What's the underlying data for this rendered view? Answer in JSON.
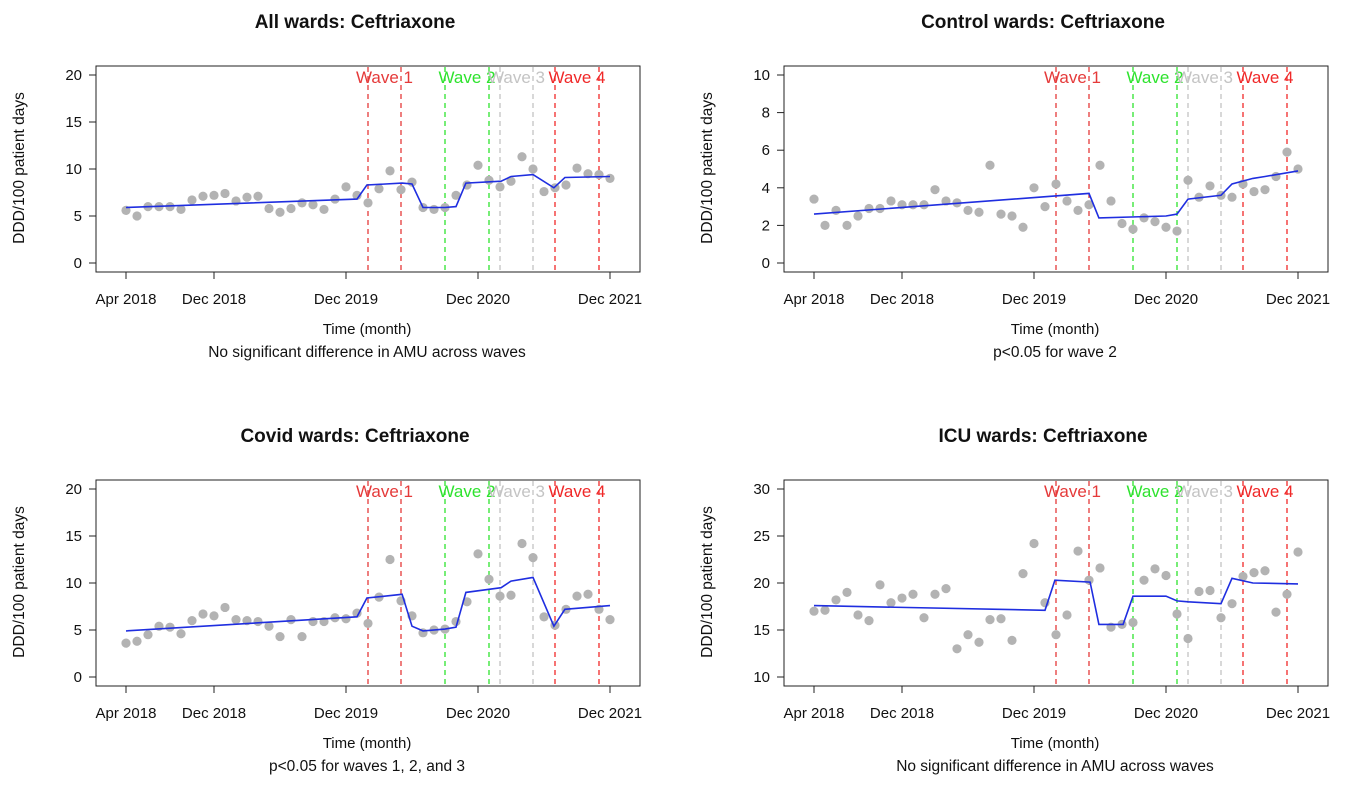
{
  "chart_data": [
    {
      "type": "scatter",
      "title": "All wards: Ceftriaxone",
      "xlabel": "Time (month)",
      "ylabel": "DDD/100 patient days",
      "caption": "No significant difference in AMU across waves",
      "x_tick_labels": [
        "Apr 2018",
        "Dec 2018",
        "Dec 2019",
        "Dec 2020",
        "Dec 2021"
      ],
      "x_tick_months": [
        1,
        9,
        21,
        33,
        45
      ],
      "y_ticks": [
        0,
        5,
        10,
        15,
        20
      ],
      "ylim": [
        0,
        20
      ],
      "grid": false,
      "observed": {
        "x": [
          1,
          2,
          3,
          4,
          5,
          6,
          7,
          8,
          9,
          10,
          11,
          12,
          13,
          14,
          15,
          16,
          17,
          18,
          19,
          20,
          21,
          22,
          23,
          24,
          25,
          26,
          27,
          28,
          29,
          30,
          31,
          32,
          33,
          34,
          35,
          36,
          37,
          38,
          39,
          40,
          41,
          42,
          43,
          44,
          45
        ],
        "y": [
          5.6,
          5.0,
          6.0,
          6.0,
          6.0,
          5.7,
          6.7,
          7.1,
          7.2,
          7.4,
          6.6,
          7.0,
          7.1,
          5.8,
          5.4,
          5.8,
          6.4,
          6.2,
          5.7,
          6.8,
          8.1,
          7.2,
          6.4,
          7.9,
          9.8,
          7.8,
          8.6,
          5.9,
          5.7,
          5.9,
          7.2,
          8.3,
          10.4,
          8.8,
          8.1,
          8.7,
          11.3,
          10.0,
          7.6,
          8.0,
          8.3,
          10.1,
          9.5,
          9.4,
          9.0
        ]
      },
      "fitted": {
        "x": [
          1,
          22,
          22.9,
          26.1,
          27,
          28,
          30,
          31,
          31.9,
          35.1,
          36,
          38,
          39.9,
          40.9,
          45
        ],
        "y": [
          5.9,
          6.8,
          8.3,
          8.5,
          8.4,
          5.9,
          5.9,
          6.0,
          8.5,
          8.7,
          9.2,
          9.4,
          8.0,
          9.1,
          9.2
        ]
      },
      "waves": [
        {
          "label": "Wave 1",
          "color": "#e53a3a",
          "start": 23,
          "end": 26
        },
        {
          "label": "Wave 2",
          "color": "#2ee32e",
          "start": 30,
          "end": 34
        },
        {
          "label": "Wave 3",
          "color": "#c4c4c4",
          "start": 35,
          "end": 38
        },
        {
          "label": "Wave 4",
          "color": "#f02828",
          "start": 40,
          "end": 44
        }
      ],
      "point_color": "#b3b3b3",
      "line_color": "#1f2ee0"
    },
    {
      "type": "scatter",
      "title": "Control wards: Ceftriaxone",
      "xlabel": "Time (month)",
      "ylabel": "DDD/100 patient days",
      "caption": "p<0.05 for wave 2",
      "x_tick_labels": [
        "Apr 2018",
        "Dec 2018",
        "Dec 2019",
        "Dec 2020",
        "Dec 2021"
      ],
      "x_tick_months": [
        1,
        9,
        21,
        33,
        45
      ],
      "y_ticks": [
        0,
        2,
        4,
        6,
        8,
        10
      ],
      "ylim": [
        0,
        10
      ],
      "grid": false,
      "observed": {
        "x": [
          1,
          2,
          3,
          4,
          5,
          6,
          7,
          8,
          9,
          10,
          11,
          12,
          13,
          14,
          15,
          16,
          17,
          18,
          19,
          20,
          21,
          22,
          23,
          24,
          25,
          26,
          27,
          28,
          29,
          30,
          31,
          32,
          33,
          34,
          35,
          36,
          37,
          38,
          39,
          40,
          41,
          42,
          43,
          44,
          45
        ],
        "y": [
          3.4,
          2.0,
          2.8,
          2.0,
          2.5,
          2.9,
          2.9,
          3.3,
          3.1,
          3.1,
          3.1,
          3.9,
          3.3,
          3.2,
          2.8,
          2.7,
          5.2,
          2.6,
          2.5,
          1.9,
          4.0,
          3.0,
          4.2,
          3.3,
          2.8,
          3.1,
          5.2,
          3.3,
          2.1,
          1.8,
          2.4,
          2.2,
          1.9,
          1.7,
          4.4,
          3.5,
          4.1,
          3.6,
          3.5,
          4.2,
          3.8,
          3.9,
          4.6,
          5.9,
          5.0
        ]
      },
      "fitted": {
        "x": [
          1,
          26,
          26.9,
          33,
          34,
          35,
          38,
          39,
          40.9,
          42,
          45
        ],
        "y": [
          2.6,
          3.7,
          2.4,
          2.5,
          2.6,
          3.4,
          3.6,
          4.2,
          4.5,
          4.6,
          4.9
        ]
      },
      "waves": [
        {
          "label": "Wave 1",
          "color": "#e53a3a",
          "start": 23,
          "end": 26
        },
        {
          "label": "Wave 2",
          "color": "#2ee32e",
          "start": 30,
          "end": 34
        },
        {
          "label": "Wave 3",
          "color": "#c4c4c4",
          "start": 35,
          "end": 38
        },
        {
          "label": "Wave 4",
          "color": "#f02828",
          "start": 40,
          "end": 44
        }
      ],
      "point_color": "#b3b3b3",
      "line_color": "#1f2ee0"
    },
    {
      "type": "scatter",
      "title": "Covid wards: Ceftriaxone",
      "xlabel": "Time (month)",
      "ylabel": "DDD/100 patient days",
      "caption": "p<0.05 for waves 1, 2, and 3",
      "x_tick_labels": [
        "Apr 2018",
        "Dec 2018",
        "Dec 2019",
        "Dec 2020",
        "Dec 2021"
      ],
      "x_tick_months": [
        1,
        9,
        21,
        33,
        45
      ],
      "y_ticks": [
        0,
        5,
        10,
        15,
        20
      ],
      "ylim": [
        0,
        20
      ],
      "grid": false,
      "observed": {
        "x": [
          1,
          2,
          3,
          4,
          5,
          6,
          7,
          8,
          9,
          10,
          11,
          12,
          13,
          14,
          15,
          16,
          17,
          18,
          19,
          20,
          21,
          22,
          23,
          24,
          25,
          26,
          27,
          28,
          29,
          30,
          31,
          32,
          33,
          34,
          35,
          36,
          37,
          38,
          39,
          40,
          41,
          42,
          43,
          44,
          45
        ],
        "y": [
          3.6,
          3.8,
          4.5,
          5.4,
          5.3,
          4.6,
          6.0,
          6.7,
          6.5,
          7.4,
          6.1,
          6.0,
          5.9,
          5.4,
          4.3,
          6.1,
          4.3,
          5.9,
          5.9,
          6.3,
          6.2,
          6.8,
          5.7,
          8.5,
          12.5,
          8.1,
          6.5,
          4.7,
          5.0,
          5.1,
          5.9,
          8.0,
          13.1,
          10.4,
          8.6,
          8.7,
          14.2,
          12.7,
          6.4,
          5.5,
          7.2,
          8.6,
          8.8,
          7.2,
          6.1
        ]
      },
      "fitted": {
        "x": [
          1,
          22,
          22.9,
          26.1,
          27,
          28,
          30,
          31,
          31.9,
          35.1,
          36,
          38,
          39.9,
          40.9,
          45
        ],
        "y": [
          4.9,
          6.4,
          8.4,
          8.8,
          5.4,
          4.9,
          5.1,
          5.3,
          9.0,
          9.5,
          10.2,
          10.6,
          5.4,
          7.2,
          7.6
        ]
      },
      "waves": [
        {
          "label": "Wave 1",
          "color": "#e53a3a",
          "start": 23,
          "end": 26
        },
        {
          "label": "Wave 2",
          "color": "#2ee32e",
          "start": 30,
          "end": 34
        },
        {
          "label": "Wave 3",
          "color": "#c4c4c4",
          "start": 35,
          "end": 38
        },
        {
          "label": "Wave 4",
          "color": "#f02828",
          "start": 40,
          "end": 44
        }
      ],
      "point_color": "#b3b3b3",
      "line_color": "#1f2ee0"
    },
    {
      "type": "scatter",
      "title": "ICU wards: Ceftriaxone",
      "xlabel": "Time (month)",
      "ylabel": "DDD/100 patient days",
      "caption": "No significant difference in AMU across waves",
      "x_tick_labels": [
        "Apr 2018",
        "Dec 2018",
        "Dec 2019",
        "Dec 2020",
        "Dec 2021"
      ],
      "x_tick_months": [
        1,
        9,
        21,
        33,
        45
      ],
      "y_ticks": [
        10,
        15,
        20,
        25,
        30
      ],
      "ylim": [
        10,
        30
      ],
      "grid": false,
      "observed": {
        "x": [
          1,
          2,
          3,
          4,
          5,
          6,
          7,
          8,
          9,
          10,
          11,
          12,
          13,
          14,
          15,
          16,
          17,
          18,
          19,
          20,
          21,
          22,
          23,
          24,
          25,
          26,
          27,
          28,
          29,
          30,
          31,
          32,
          33,
          34,
          35,
          36,
          37,
          38,
          39,
          40,
          41,
          42,
          43,
          44,
          45
        ],
        "y": [
          17.0,
          17.1,
          18.2,
          19.0,
          16.6,
          16.0,
          19.8,
          17.9,
          18.4,
          18.8,
          16.3,
          18.8,
          19.4,
          13.0,
          14.5,
          13.7,
          16.1,
          16.2,
          13.9,
          21.0,
          24.2,
          17.9,
          14.5,
          16.6,
          23.4,
          20.3,
          21.6,
          15.3,
          15.6,
          15.8,
          20.3,
          21.5,
          20.8,
          16.7,
          14.1,
          19.1,
          19.2,
          16.3,
          17.8,
          20.7,
          21.1,
          21.3,
          16.9,
          18.8,
          23.3
        ]
      },
      "fitted": {
        "x": [
          1,
          22,
          22.9,
          26.1,
          26.9,
          29.1,
          30,
          33,
          34,
          35,
          38,
          39,
          40.9,
          45
        ],
        "y": [
          17.6,
          17.1,
          20.3,
          20.1,
          15.6,
          15.6,
          18.6,
          18.6,
          18.1,
          18.0,
          17.8,
          20.5,
          20.0,
          19.9
        ]
      },
      "waves": [
        {
          "label": "Wave 1",
          "color": "#e53a3a",
          "start": 23,
          "end": 26
        },
        {
          "label": "Wave 2",
          "color": "#2ee32e",
          "start": 30,
          "end": 34
        },
        {
          "label": "Wave 3",
          "color": "#c4c4c4",
          "start": 35,
          "end": 38
        },
        {
          "label": "Wave 4",
          "color": "#f02828",
          "start": 40,
          "end": 44
        }
      ],
      "point_color": "#b3b3b3",
      "line_color": "#1f2ee0"
    }
  ]
}
